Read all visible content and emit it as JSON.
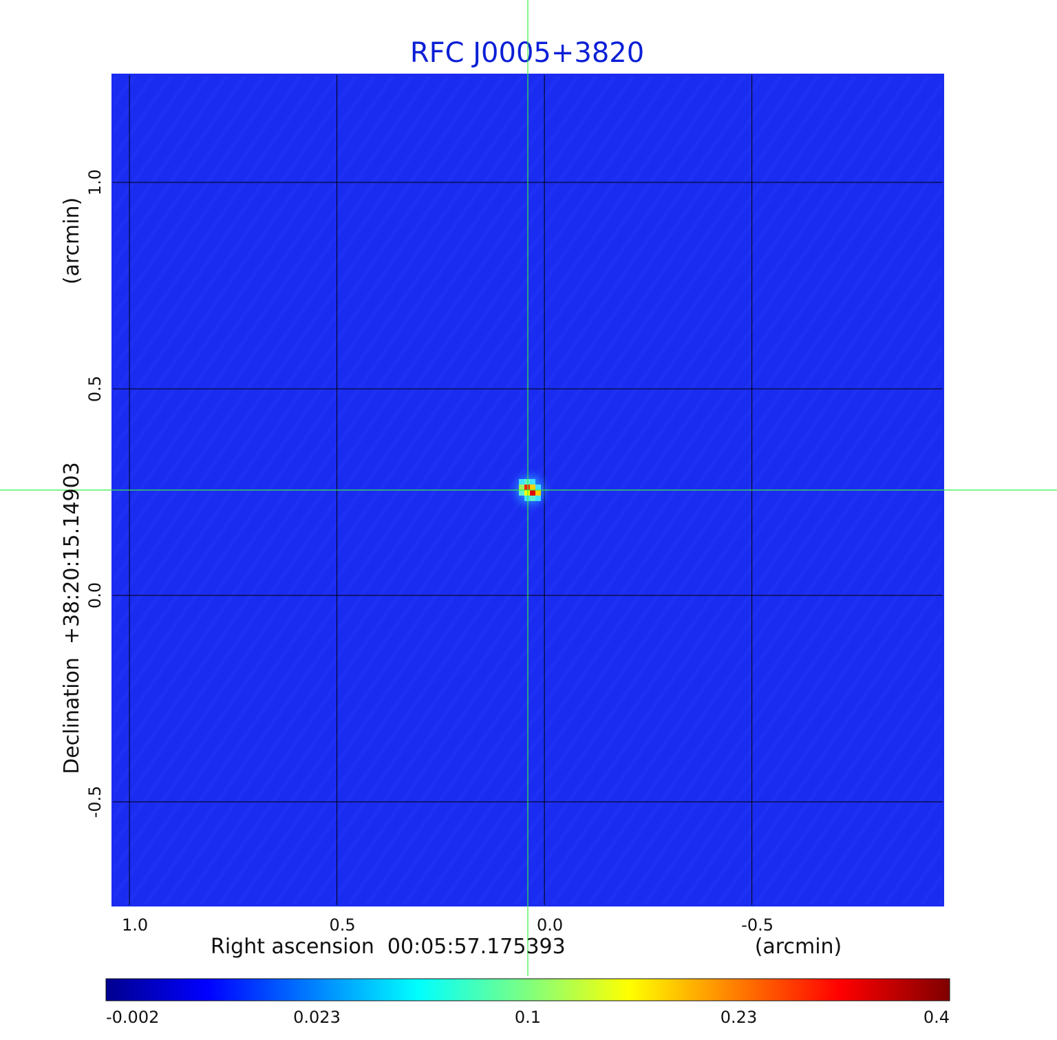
{
  "chart_data": {
    "type": "heatmap",
    "title": "RFC J0005+3820",
    "xlabel": "Right ascension  00:05:57.175393",
    "xunit": "(arcmin)",
    "ylabel": "Declination  +38:20:15.14903",
    "yunit": "(arcmin)",
    "xlim": [
      1.04,
      -0.96
    ],
    "ylim": [
      -0.75,
      1.26
    ],
    "xticks": [
      1.0,
      0.5,
      0.0,
      -0.5
    ],
    "xtick_labels": [
      "1.0",
      "0.5",
      "0.0",
      "-0.5"
    ],
    "yticks": [
      1.0,
      0.5,
      0.0,
      -0.5
    ],
    "ytick_labels": [
      "1.0",
      "0.5",
      "0.0",
      "-0.5"
    ],
    "grid": true,
    "crosshair": {
      "x": 0.04,
      "y": 0.255
    },
    "source_peak": {
      "x": 0.035,
      "y": 0.255,
      "value": 0.4
    },
    "colorbar": {
      "colormap": "jet",
      "ticks": [
        -0.002,
        0.023,
        0.1,
        0.23,
        0.4
      ],
      "tick_labels": [
        "-0.002",
        "0.023",
        "0.1",
        "0.23",
        "0.4"
      ],
      "placement": "bottom"
    },
    "colors": {
      "background_field": "#1a2cf0",
      "title": "#0b1fd6",
      "crosshair": "#33ee44",
      "grid": "#000000"
    }
  }
}
